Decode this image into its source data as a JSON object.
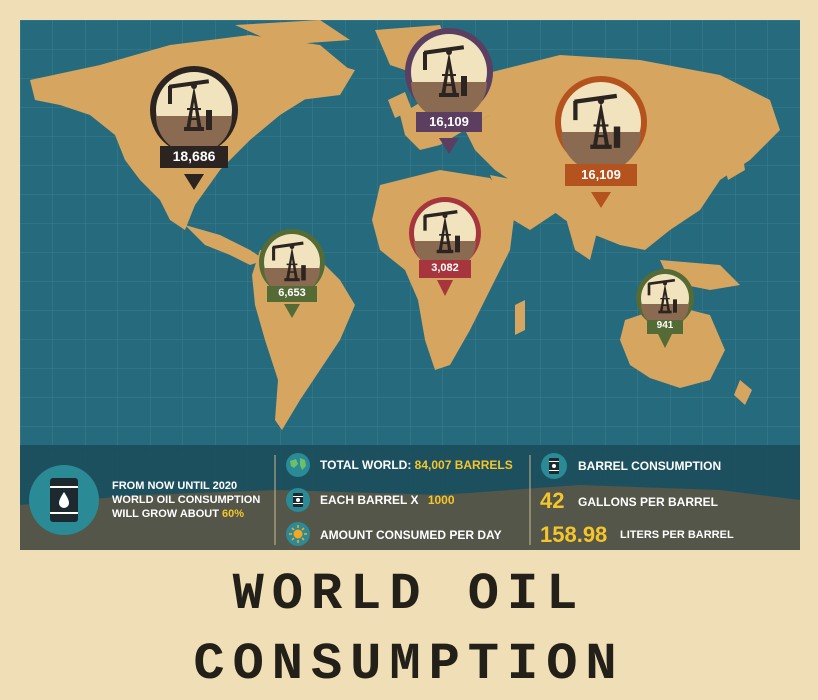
{
  "title": "WORLD OIL CONSUMPTION",
  "colors": {
    "ocean": "#256a7d",
    "land": "#d6a55f",
    "background": "#f0dfb6",
    "accent_yellow": "#f5c52b",
    "panel": "#1d4f5d"
  },
  "markers": [
    {
      "region": "North America",
      "value": "18,686",
      "color": "#2b2420"
    },
    {
      "region": "Europe / Russia",
      "value": "16,109",
      "color": "#5b3e60"
    },
    {
      "region": "Asia",
      "value": "16,109",
      "color": "#b5531f"
    },
    {
      "region": "South America",
      "value": "6,653",
      "color": "#556b35"
    },
    {
      "region": "Africa",
      "value": "3,082",
      "color": "#a7353d"
    },
    {
      "region": "Australia",
      "value": "941",
      "color": "#556b35"
    }
  ],
  "footer": {
    "growth_text_line1": "FROM NOW UNTIL 2020",
    "growth_text_line2": "WORLD OIL CONSUMPTION",
    "growth_text_line3": "WILL GROW ABOUT",
    "growth_percent": "60%",
    "total_label": "TOTAL WORLD:",
    "total_value": "84,007 BARRELS",
    "each_barrel_label": "EACH BARREL X",
    "each_barrel_value": "1000",
    "per_day_label": "AMOUNT CONSUMED PER DAY",
    "barrel_consumption_label": "BARREL CONSUMPTION",
    "gallons_value": "42",
    "gallons_label": "GALLONS PER BARREL",
    "liters_value": "158.98",
    "liters_label": "LITERS PER BARREL"
  },
  "icons": [
    "oil-derrick-icon",
    "oil-barrel-icon",
    "globe-icon",
    "sun-icon"
  ]
}
